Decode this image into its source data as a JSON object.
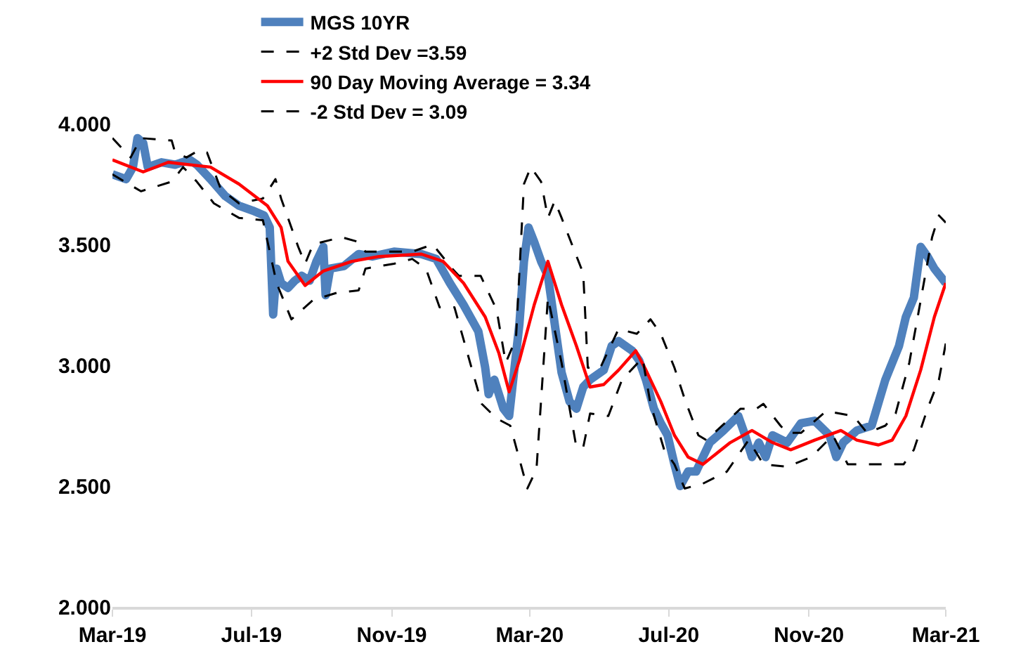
{
  "chart_data": {
    "type": "line",
    "ylim": [
      2,
      4.5
    ],
    "yticks": [
      {
        "value": 2,
        "label": "2.000"
      },
      {
        "value": 2.5,
        "label": "2.500"
      },
      {
        "value": 3,
        "label": "3.000"
      },
      {
        "value": 3.5,
        "label": "3.500"
      },
      {
        "value": 4,
        "label": "4.000"
      }
    ],
    "xlim": [
      "2019-03-01",
      "2021-03-01"
    ],
    "xticks": [
      {
        "value": "2019-03-01",
        "label": "Mar-19"
      },
      {
        "value": "2019-07-01",
        "label": "Jul-19"
      },
      {
        "value": "2019-11-01",
        "label": "Nov-19"
      },
      {
        "value": "2020-03-01",
        "label": "Mar-20"
      },
      {
        "value": "2020-07-01",
        "label": "Jul-20"
      },
      {
        "value": "2020-11-01",
        "label": "Nov-20"
      },
      {
        "value": "2021-03-01",
        "label": "Mar-21"
      }
    ],
    "grid": false,
    "legend": "top",
    "marker": "none",
    "series": [
      {
        "name": "MGS 10YR",
        "color": "#4f81bd",
        "line_style": "solid",
        "x": [
          "2019-03-01",
          "2019-03-13",
          "2019-03-19",
          "2019-03-23",
          "2019-03-28",
          "2019-04-01",
          "2019-04-13",
          "2019-04-25",
          "2019-05-08",
          "2019-05-14",
          "2019-05-26",
          "2019-06-08",
          "2019-06-20",
          "2019-07-02",
          "2019-07-12",
          "2019-07-17",
          "2019-07-20",
          "2019-07-23",
          "2019-07-27",
          "2019-08-02",
          "2019-08-08",
          "2019-08-14",
          "2019-08-21",
          "2019-08-27",
          "2019-09-02",
          "2019-09-04",
          "2019-09-08",
          "2019-09-20",
          "2019-10-03",
          "2019-10-15",
          "2019-11-03",
          "2019-11-27",
          "2019-12-10",
          "2019-12-22",
          "2020-01-03",
          "2020-01-16",
          "2020-01-22",
          "2020-01-25",
          "2020-01-30",
          "2020-02-07",
          "2020-02-12",
          "2020-02-21",
          "2020-02-25",
          "2020-02-29",
          "2020-03-05",
          "2020-03-11",
          "2020-03-17",
          "2020-03-23",
          "2020-03-29",
          "2020-04-05",
          "2020-04-11",
          "2020-04-17",
          "2020-04-23",
          "2020-05-05",
          "2020-05-12",
          "2020-05-18",
          "2020-05-30",
          "2020-06-05",
          "2020-06-11",
          "2020-06-18",
          "2020-06-24",
          "2020-06-30",
          "2020-07-06",
          "2020-07-11",
          "2020-07-18",
          "2020-07-25",
          "2020-07-31",
          "2020-08-06",
          "2020-08-18",
          "2020-08-31",
          "2020-09-06",
          "2020-09-12",
          "2020-09-18",
          "2020-09-24",
          "2020-09-30",
          "2020-10-13",
          "2020-10-25",
          "2020-11-06",
          "2020-11-19",
          "2020-11-25",
          "2020-12-01",
          "2020-12-13",
          "2020-12-26",
          "2021-01-07",
          "2021-01-19",
          "2021-01-25",
          "2021-02-01",
          "2021-02-07",
          "2021-02-13",
          "2021-02-19",
          "2021-03-01"
        ],
        "values": [
          3.79,
          3.77,
          3.82,
          3.94,
          3.92,
          3.82,
          3.84,
          3.83,
          3.85,
          3.83,
          3.77,
          3.7,
          3.66,
          3.64,
          3.62,
          3.57,
          3.21,
          3.4,
          3.34,
          3.32,
          3.35,
          3.37,
          3.35,
          3.43,
          3.49,
          3.29,
          3.4,
          3.41,
          3.46,
          3.45,
          3.47,
          3.46,
          3.44,
          3.34,
          3.25,
          3.14,
          2.99,
          2.88,
          2.94,
          2.82,
          2.79,
          3.17,
          3.43,
          3.57,
          3.51,
          3.43,
          3.37,
          3.17,
          2.97,
          2.85,
          2.82,
          2.91,
          2.94,
          2.98,
          3.08,
          3.1,
          3.06,
          3.02,
          2.94,
          2.82,
          2.76,
          2.71,
          2.59,
          2.5,
          2.56,
          2.56,
          2.62,
          2.68,
          2.73,
          2.79,
          2.71,
          2.62,
          2.68,
          2.62,
          2.71,
          2.68,
          2.76,
          2.77,
          2.71,
          2.62,
          2.68,
          2.73,
          2.75,
          2.94,
          3.08,
          3.2,
          3.28,
          3.49,
          3.45,
          3.4,
          3.34
        ]
      },
      {
        "name": "+2 Std Dev =3.59",
        "color": "#000000",
        "line_style": "dashed",
        "x": [
          "2019-03-01",
          "2019-03-17",
          "2019-03-26",
          "2019-04-22",
          "2019-04-25",
          "2019-05-05",
          "2019-05-16",
          "2019-05-23",
          "2019-06-04",
          "2019-06-20",
          "2019-07-11",
          "2019-07-22",
          "2019-07-27",
          "2019-08-11",
          "2019-08-17",
          "2019-08-24",
          "2019-09-18",
          "2019-10-03",
          "2019-10-09",
          "2019-11-19",
          "2019-12-07",
          "2019-12-24",
          "2019-12-30",
          "2020-01-18",
          "2020-02-01",
          "2020-02-09",
          "2020-02-18",
          "2020-02-25",
          "2020-03-02",
          "2020-03-11",
          "2020-03-17",
          "2020-03-23",
          "2020-03-29",
          "2020-04-17",
          "2020-04-21",
          "2020-05-02",
          "2020-05-18",
          "2020-06-03",
          "2020-06-15",
          "2020-06-24",
          "2020-07-06",
          "2020-07-15",
          "2020-07-27",
          "2020-08-03",
          "2020-09-02",
          "2020-09-16",
          "2020-09-22",
          "2020-10-07",
          "2020-10-13",
          "2020-10-25",
          "2020-11-16",
          "2020-12-10",
          "2020-12-22",
          "2021-01-07",
          "2021-01-16",
          "2021-01-28",
          "2021-02-04",
          "2021-02-17",
          "2021-02-23",
          "2021-03-01"
        ],
        "values": [
          3.94,
          3.86,
          3.94,
          3.93,
          3.88,
          3.86,
          3.89,
          3.88,
          3.73,
          3.67,
          3.69,
          3.77,
          3.69,
          3.49,
          3.42,
          3.5,
          3.53,
          3.51,
          3.47,
          3.47,
          3.5,
          3.4,
          3.37,
          3.37,
          3.23,
          3.01,
          3.11,
          3.75,
          3.82,
          3.76,
          3.61,
          3.68,
          3.61,
          3.38,
          2.99,
          2.99,
          3.15,
          3.13,
          3.19,
          3.13,
          2.99,
          2.86,
          2.71,
          2.69,
          2.82,
          2.82,
          2.84,
          2.75,
          2.72,
          2.72,
          2.81,
          2.79,
          2.72,
          2.75,
          2.8,
          3.01,
          3.19,
          3.53,
          3.62,
          3.59
        ]
      },
      {
        "name": "90 Day Moving Average = 3.34",
        "color": "#ff0000",
        "line_style": "solid",
        "x": [
          "2019-03-01",
          "2019-03-28",
          "2019-04-19",
          "2019-05-26",
          "2019-06-20",
          "2019-07-15",
          "2019-07-27",
          "2019-08-02",
          "2019-08-17",
          "2019-09-02",
          "2019-09-27",
          "2019-10-21",
          "2019-11-27",
          "2019-12-16",
          "2020-01-03",
          "2020-01-22",
          "2020-02-03",
          "2020-02-12",
          "2020-02-21",
          "2020-03-05",
          "2020-03-17",
          "2020-03-29",
          "2020-04-11",
          "2020-04-23",
          "2020-05-05",
          "2020-05-18",
          "2020-06-02",
          "2020-06-11",
          "2020-06-24",
          "2020-07-06",
          "2020-07-18",
          "2020-07-31",
          "2020-08-24",
          "2020-09-12",
          "2020-09-30",
          "2020-10-16",
          "2020-11-06",
          "2020-11-29",
          "2020-12-13",
          "2021-01-01",
          "2021-01-13",
          "2021-01-25",
          "2021-02-07",
          "2021-02-19",
          "2021-03-01"
        ],
        "values": [
          3.85,
          3.8,
          3.84,
          3.82,
          3.75,
          3.66,
          3.57,
          3.43,
          3.33,
          3.39,
          3.43,
          3.45,
          3.46,
          3.43,
          3.34,
          3.2,
          3.05,
          2.89,
          3.02,
          3.25,
          3.43,
          3.25,
          3.08,
          2.91,
          2.92,
          2.98,
          3.06,
          2.98,
          2.85,
          2.71,
          2.62,
          2.59,
          2.68,
          2.73,
          2.68,
          2.65,
          2.69,
          2.73,
          2.69,
          2.67,
          2.69,
          2.79,
          2.98,
          3.2,
          3.34
        ]
      },
      {
        "name": "-2 Std Dev = 3.09",
        "color": "#000000",
        "line_style": "dashed",
        "x": [
          "2019-03-01",
          "2019-03-26",
          "2019-04-22",
          "2019-05-02",
          "2019-05-14",
          "2019-05-29",
          "2019-06-20",
          "2019-07-11",
          "2019-07-23",
          "2019-08-05",
          "2019-08-24",
          "2019-09-14",
          "2019-10-03",
          "2019-10-09",
          "2019-11-03",
          "2019-11-19",
          "2019-12-01",
          "2019-12-13",
          "2019-12-26",
          "2020-01-19",
          "2020-02-01",
          "2020-02-13",
          "2020-02-28",
          "2020-03-07",
          "2020-03-17",
          "2020-03-29",
          "2020-04-11",
          "2020-04-17",
          "2020-04-23",
          "2020-05-09",
          "2020-05-21",
          "2020-06-08",
          "2020-06-15",
          "2020-06-27",
          "2020-07-06",
          "2020-07-15",
          "2020-07-31",
          "2020-08-21",
          "2020-09-09",
          "2020-09-22",
          "2020-10-13",
          "2020-11-03",
          "2020-11-22",
          "2020-12-05",
          "2021-01-23",
          "2021-02-01",
          "2021-02-13",
          "2021-02-23",
          "2021-03-01"
        ],
        "values": [
          3.79,
          3.72,
          3.76,
          3.82,
          3.76,
          3.67,
          3.61,
          3.6,
          3.34,
          3.19,
          3.27,
          3.3,
          3.31,
          3.4,
          3.42,
          3.44,
          3.4,
          3.24,
          3.24,
          2.84,
          2.78,
          2.75,
          2.49,
          2.57,
          3.28,
          3.01,
          2.66,
          2.66,
          2.8,
          2.79,
          2.94,
          3.03,
          2.84,
          2.65,
          2.59,
          2.49,
          2.51,
          2.56,
          2.69,
          2.59,
          2.58,
          2.62,
          2.71,
          2.59,
          2.59,
          2.65,
          2.82,
          2.94,
          3.09
        ]
      }
    ]
  }
}
